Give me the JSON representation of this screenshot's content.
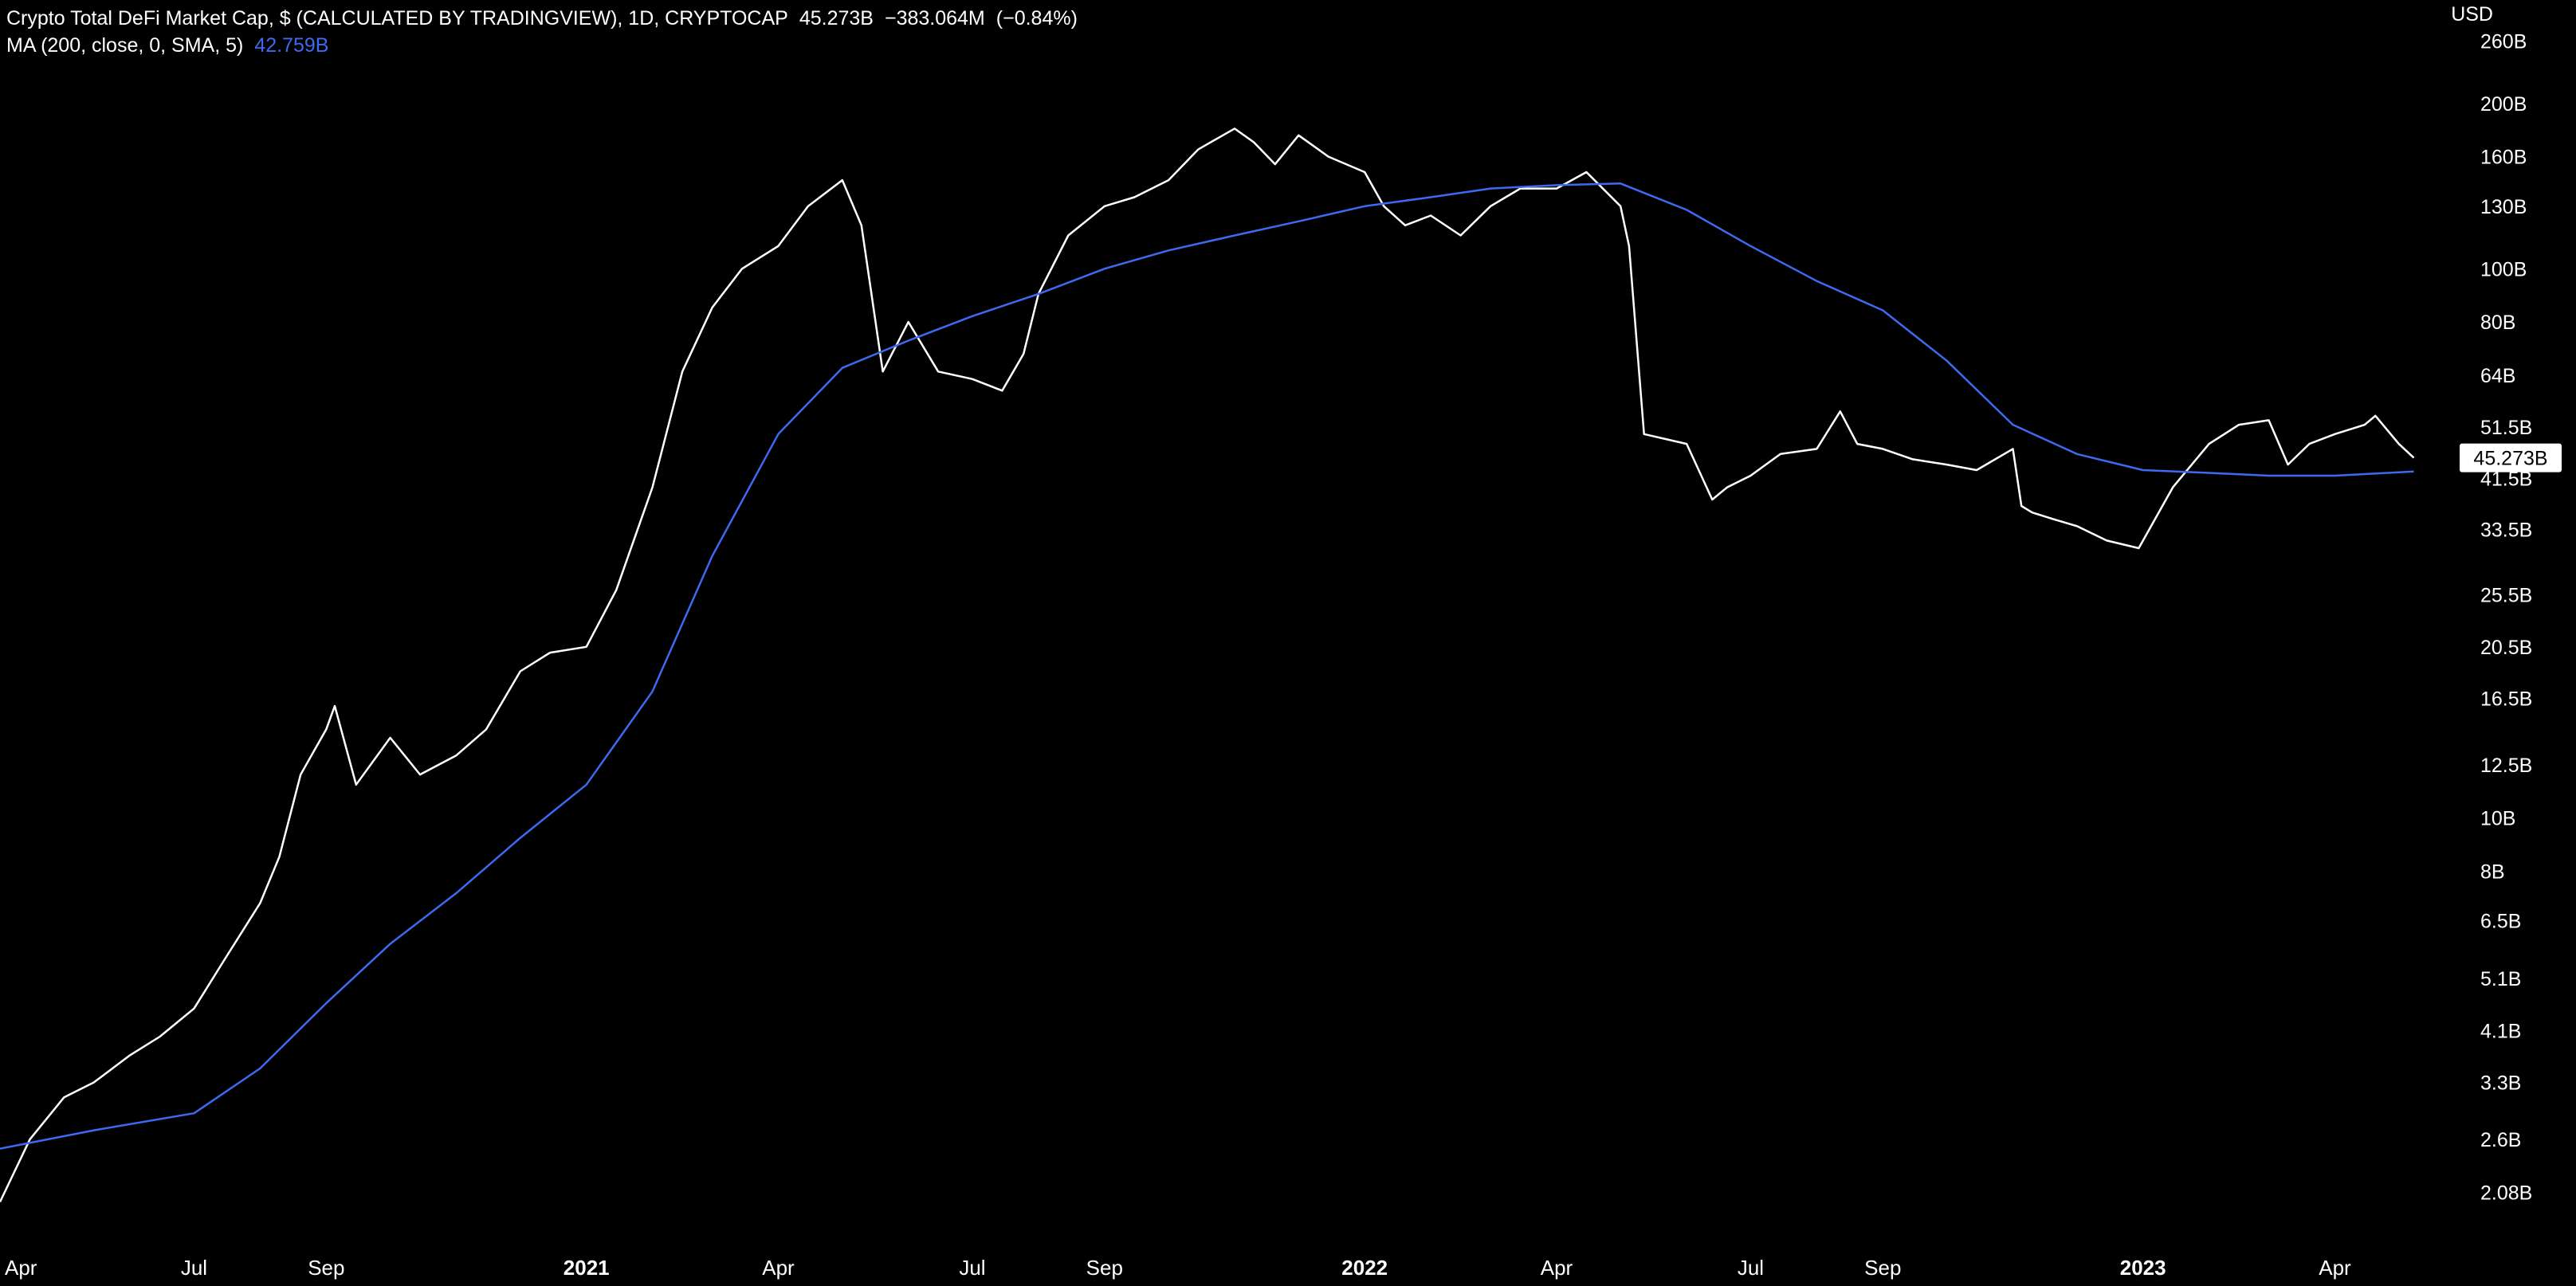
{
  "header": {
    "title": "Crypto Total DeFi Market Cap, $ (CALCULATED BY TRADINGVIEW), 1D, CRYPTOCAP",
    "last_value": "45.273B",
    "change_value": "−383.064M",
    "change_percent": "(−0.84%)",
    "ma_label": "MA (200, close, 0, SMA, 5)",
    "ma_value": "42.759B"
  },
  "colors": {
    "background": "#000000",
    "price_line": "#ffffff",
    "ma_line": "#3d6af0",
    "text": "#ffffff"
  },
  "chart_data": {
    "type": "line",
    "title": "Crypto Total DeFi Market Cap, $ (CALCULATED BY TRADINGVIEW), 1D, CRYPTOCAP",
    "currency_label": "USD",
    "y_scale": "log",
    "ylim": [
      1.8,
      270
    ],
    "y_unit": "B",
    "y_ticks": [
      2.08,
      2.6,
      3.3,
      4.1,
      5.1,
      6.5,
      8,
      10,
      12.5,
      16.5,
      20.5,
      25.5,
      33.5,
      41.5,
      51.5,
      64,
      80,
      100,
      130,
      160,
      200,
      260
    ],
    "y_tick_labels": [
      "2.08B",
      "2.6B",
      "3.3B",
      "4.1B",
      "5.1B",
      "6.5B",
      "8B",
      "10B",
      "12.5B",
      "16.5B",
      "20.5B",
      "25.5B",
      "33.5B",
      "41.5B",
      "51.5B",
      "64B",
      "80B",
      "100B",
      "130B",
      "160B",
      "200B",
      "260B"
    ],
    "xlim": [
      "2020-04-01",
      "2023-05-31"
    ],
    "x_ticks": [
      "2020-04-01",
      "2020-07-01",
      "2020-09-01",
      "2021-01-01",
      "2021-04-01",
      "2021-07-01",
      "2021-09-01",
      "2022-01-01",
      "2022-04-01",
      "2022-07-01",
      "2022-09-01",
      "2023-01-01",
      "2023-04-01"
    ],
    "x_tick_labels": [
      "Apr",
      "Jul",
      "Sep",
      "2021",
      "Apr",
      "Jul",
      "Sep",
      "2022",
      "Apr",
      "Jul",
      "Sep",
      "2023",
      "Apr"
    ],
    "last_price_label": "45.273B",
    "last_price_value": 45.273,
    "grid": false,
    "series": [
      {
        "name": "Crypto Total DeFi Market Cap",
        "color": "#ffffff",
        "x": [
          "2020-04-01",
          "2020-04-15",
          "2020-05-01",
          "2020-05-15",
          "2020-06-01",
          "2020-06-15",
          "2020-07-01",
          "2020-07-15",
          "2020-08-01",
          "2020-08-10",
          "2020-08-20",
          "2020-09-01",
          "2020-09-05",
          "2020-09-15",
          "2020-10-01",
          "2020-10-15",
          "2020-11-01",
          "2020-11-15",
          "2020-12-01",
          "2020-12-15",
          "2021-01-01",
          "2021-01-15",
          "2021-02-01",
          "2021-02-15",
          "2021-03-01",
          "2021-03-15",
          "2021-04-01",
          "2021-04-15",
          "2021-05-01",
          "2021-05-10",
          "2021-05-20",
          "2021-06-01",
          "2021-06-15",
          "2021-07-01",
          "2021-07-15",
          "2021-07-25",
          "2021-08-01",
          "2021-08-15",
          "2021-09-01",
          "2021-09-15",
          "2021-10-01",
          "2021-10-15",
          "2021-11-01",
          "2021-11-10",
          "2021-11-20",
          "2021-12-01",
          "2021-12-15",
          "2022-01-01",
          "2022-01-10",
          "2022-01-20",
          "2022-02-01",
          "2022-02-15",
          "2022-03-01",
          "2022-03-15",
          "2022-04-01",
          "2022-04-15",
          "2022-05-01",
          "2022-05-05",
          "2022-05-12",
          "2022-06-01",
          "2022-06-13",
          "2022-06-20",
          "2022-07-01",
          "2022-07-15",
          "2022-08-01",
          "2022-08-12",
          "2022-08-20",
          "2022-09-01",
          "2022-09-15",
          "2022-10-01",
          "2022-10-15",
          "2022-11-01",
          "2022-11-05",
          "2022-11-10",
          "2022-11-20",
          "2022-12-01",
          "2022-12-15",
          "2022-12-30",
          "2023-01-15",
          "2023-02-01",
          "2023-02-15",
          "2023-03-01",
          "2023-03-10",
          "2023-03-20",
          "2023-04-01",
          "2023-04-15",
          "2023-04-20",
          "2023-05-01",
          "2023-05-08"
        ],
        "values": [
          2.0,
          2.6,
          3.1,
          3.3,
          3.7,
          4.0,
          4.5,
          5.5,
          7.0,
          8.5,
          12.0,
          14.5,
          16.0,
          11.5,
          14.0,
          12.0,
          13.0,
          14.5,
          18.5,
          20.0,
          20.5,
          26.0,
          40.0,
          65.0,
          85.0,
          100.0,
          110.0,
          130.0,
          145.0,
          120.0,
          65.0,
          80.0,
          65.0,
          63.0,
          60.0,
          70.0,
          90.0,
          115.0,
          130.0,
          135.0,
          145.0,
          165.0,
          180.0,
          170.0,
          155.0,
          175.0,
          160.0,
          150.0,
          130.0,
          120.0,
          125.0,
          115.0,
          130.0,
          140.0,
          140.0,
          150.0,
          130.0,
          110.0,
          50.0,
          48.0,
          38.0,
          40.0,
          42.0,
          46.0,
          47.0,
          55.0,
          48.0,
          47.0,
          45.0,
          44.0,
          43.0,
          47.0,
          37.0,
          36.0,
          35.0,
          34.0,
          32.0,
          31.0,
          40.0,
          48.0,
          52.0,
          53.0,
          44.0,
          48.0,
          50.0,
          52.0,
          54.0,
          48.0,
          45.273
        ]
      },
      {
        "name": "MA (200, close, 0, SMA, 5)",
        "color": "#3d6af0",
        "x": [
          "2020-04-01",
          "2020-05-15",
          "2020-07-01",
          "2020-08-01",
          "2020-09-01",
          "2020-10-01",
          "2020-11-01",
          "2020-12-01",
          "2021-01-01",
          "2021-02-01",
          "2021-03-01",
          "2021-04-01",
          "2021-05-01",
          "2021-06-01",
          "2021-07-01",
          "2021-08-01",
          "2021-09-01",
          "2021-10-01",
          "2021-11-01",
          "2021-12-01",
          "2022-01-01",
          "2022-02-01",
          "2022-03-01",
          "2022-04-01",
          "2022-05-01",
          "2022-06-01",
          "2022-07-01",
          "2022-08-01",
          "2022-09-01",
          "2022-10-01",
          "2022-11-01",
          "2022-12-01",
          "2023-01-01",
          "2023-02-01",
          "2023-03-01",
          "2023-04-01",
          "2023-05-08"
        ],
        "values": [
          2.5,
          2.7,
          2.9,
          3.5,
          4.6,
          5.9,
          7.3,
          9.2,
          11.5,
          17.0,
          30.0,
          50.0,
          66.0,
          74.0,
          82.0,
          90.0,
          100.0,
          108.0,
          115.0,
          122.0,
          130.0,
          135.0,
          140.0,
          142.0,
          143.0,
          128.0,
          110.0,
          95.0,
          84.0,
          68.0,
          52.0,
          46.0,
          43.0,
          42.5,
          42.0,
          42.0,
          42.759
        ]
      }
    ]
  }
}
